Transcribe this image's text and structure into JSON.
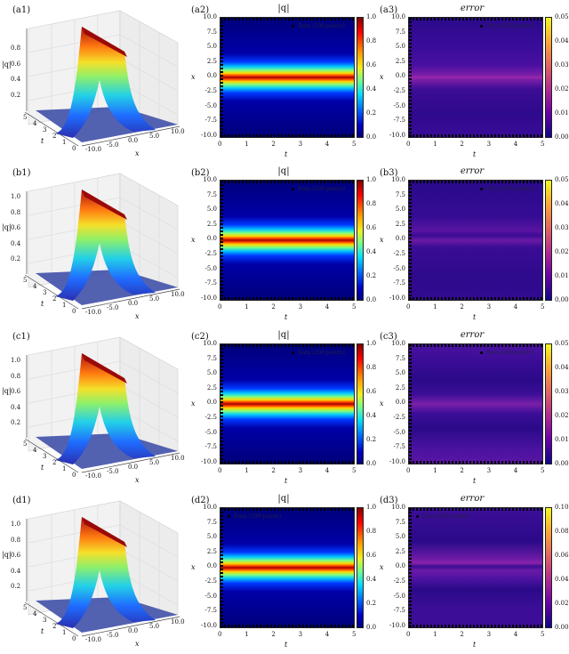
{
  "chart_data": [
    {
      "panel": "a1",
      "type": "surface3d",
      "zlabel": "|q|",
      "xlabel": "x",
      "ylabel": "t",
      "xticks": [
        "-10.0",
        "-5.0",
        "0.0",
        "5.0",
        "10.0"
      ],
      "yticks": [
        "0",
        "1",
        "2",
        "3",
        "4",
        "5"
      ],
      "zticks": [
        "0.2",
        "0.4",
        "0.6",
        "0.8"
      ],
      "peak": 1.0,
      "profile": "sech soliton centered at x=0, constant in t"
    },
    {
      "panel": "a2",
      "type": "heatmap",
      "title": "|q|",
      "xlabel": "t",
      "ylabel": "x",
      "xticks": [
        "0",
        "1",
        "2",
        "3",
        "4",
        "5"
      ],
      "yticks": [
        "10.0",
        "7.5",
        "5.0",
        "2.5",
        "0.0",
        "-2.5",
        "-5.0",
        "-7.5",
        "-10.0"
      ],
      "colormap": "jet",
      "colorbar": [
        "1.0",
        "0.8",
        "0.6",
        "0.4",
        "0.2",
        "0.0"
      ],
      "legend": "Data (200 points)",
      "band_center_x": 0.0,
      "band_halfwidth": 2.5
    },
    {
      "panel": "a3",
      "type": "heatmap",
      "title": "error",
      "xlabel": "t",
      "ylabel": "x",
      "xticks": [
        "0",
        "1",
        "2",
        "3",
        "4",
        "5"
      ],
      "yticks": [
        "10.0",
        "7.5",
        "5.0",
        "2.5",
        "0.0",
        "-2.5",
        "-5.0",
        "-7.5",
        "-10.0"
      ],
      "colormap": "plasma",
      "colorbar": [
        "0.05",
        "0.04",
        "0.03",
        "0.02",
        "0.01",
        "0.00"
      ],
      "legend": "Data (200 points)",
      "max_error_region": "x≈0, t 2–5"
    },
    {
      "panel": "b1",
      "type": "surface3d",
      "zlabel": "|q|",
      "xlabel": "x",
      "ylabel": "t",
      "xticks": [
        "-10.0",
        "-5.0",
        "0.0",
        "5.0",
        "10.0"
      ],
      "yticks": [
        "0",
        "1",
        "2",
        "3",
        "4",
        "5"
      ],
      "zticks": [
        "0.2",
        "0.4",
        "0.6",
        "0.8",
        "1.0"
      ],
      "peak": 1.0
    },
    {
      "panel": "b2",
      "type": "heatmap",
      "title": "|q|",
      "xlabel": "t",
      "ylabel": "x",
      "xticks": [
        "0",
        "1",
        "2",
        "3",
        "4",
        "5"
      ],
      "yticks": [
        "10.0",
        "7.5",
        "5.0",
        "2.5",
        "0.0",
        "-2.5",
        "-5.0",
        "-7.5",
        "-10.0"
      ],
      "colormap": "jet",
      "colorbar": [
        "1.0",
        "0.8",
        "0.6",
        "0.4",
        "0.2",
        "0.0"
      ],
      "legend": "Data (200 points)"
    },
    {
      "panel": "b3",
      "type": "heatmap",
      "title": "error",
      "xlabel": "t",
      "ylabel": "x",
      "xticks": [
        "0",
        "1",
        "2",
        "3",
        "4",
        "5"
      ],
      "yticks": [
        "10.0",
        "7.5",
        "5.0",
        "2.5",
        "0.0",
        "-2.5",
        "-5.0",
        "-7.5",
        "-10.0"
      ],
      "colormap": "plasma",
      "colorbar": [
        "0.05",
        "0.04",
        "0.03",
        "0.02",
        "0.01",
        "0.00"
      ],
      "legend": "Data (200 points)"
    },
    {
      "panel": "c1",
      "type": "surface3d",
      "zlabel": "|q|",
      "xlabel": "x",
      "ylabel": "t",
      "xticks": [
        "-10.0",
        "-5.0",
        "0.0",
        "5.0",
        "10.0"
      ],
      "yticks": [
        "0",
        "1",
        "2",
        "3",
        "4",
        "5"
      ],
      "zticks": [
        "0.2",
        "0.4",
        "0.6",
        "0.8",
        "1.0"
      ],
      "peak": 1.0
    },
    {
      "panel": "c2",
      "type": "heatmap",
      "title": "|q|",
      "xlabel": "t",
      "ylabel": "x",
      "xticks": [
        "0",
        "1",
        "2",
        "3",
        "4",
        "5"
      ],
      "yticks": [
        "10.0",
        "7.5",
        "5.0",
        "2.5",
        "0.0",
        "-2.5",
        "-5.0",
        "-7.5",
        "-10.0"
      ],
      "colormap": "jet",
      "colorbar": [
        "1.0",
        "0.8",
        "0.6",
        "0.4",
        "0.2",
        "0.0"
      ],
      "legend": "Data (200 points)"
    },
    {
      "panel": "c3",
      "type": "heatmap",
      "title": "error",
      "xlabel": "t",
      "ylabel": "x",
      "xticks": [
        "0",
        "1",
        "2",
        "3",
        "4",
        "5"
      ],
      "yticks": [
        "10.0",
        "7.5",
        "5.0",
        "2.5",
        "0.0",
        "-2.5",
        "-5.0",
        "-7.5",
        "-10.0"
      ],
      "colormap": "plasma",
      "colorbar": [
        "0.05",
        "0.04",
        "0.03",
        "0.02",
        "0.01",
        "0.00"
      ],
      "legend": "Data (200 points)"
    },
    {
      "panel": "d1",
      "type": "surface3d",
      "zlabel": "|q|",
      "xlabel": "x",
      "ylabel": "t",
      "xticks": [
        "-10.0",
        "-5.0",
        "0.0",
        "5.0",
        "10.0"
      ],
      "yticks": [
        "0",
        "1",
        "2",
        "3",
        "4",
        "5"
      ],
      "zticks": [
        "0.2",
        "0.4",
        "0.6",
        "0.8",
        "1.0"
      ],
      "peak": 1.0
    },
    {
      "panel": "d2",
      "type": "heatmap",
      "title": "|q|",
      "xlabel": "t",
      "ylabel": "x",
      "xticks": [
        "0",
        "1",
        "2",
        "3",
        "4",
        "5"
      ],
      "yticks": [
        "10.0",
        "7.5",
        "5.0",
        "2.5",
        "0.0",
        "-2.5",
        "-5.0",
        "-7.5",
        "-10.0"
      ],
      "colormap": "jet",
      "colorbar": [
        "1.0",
        "0.8",
        "0.6",
        "0.4",
        "0.2",
        "0.0"
      ],
      "legend": "Data (200 points)"
    },
    {
      "panel": "d3",
      "type": "heatmap",
      "title": "error",
      "xlabel": "t",
      "ylabel": "x",
      "xticks": [
        "0",
        "1",
        "2",
        "3",
        "4",
        "5"
      ],
      "yticks": [
        "10.0",
        "7.5",
        "5.0",
        "2.5",
        "0.0",
        "-2.5",
        "-5.0",
        "-7.5",
        "-10.0"
      ],
      "colormap": "plasma",
      "colorbar": [
        "0.10",
        "0.08",
        "0.06",
        "0.04",
        "0.02",
        "0.00"
      ],
      "legend": "Data (200 points)"
    }
  ],
  "rows": [
    {
      "s": "(a1)",
      "h": "(a2)",
      "e": "(a3)",
      "zt": [
        "0.8",
        "0.6",
        "0.4",
        "0.2"
      ],
      "cb": [
        "0.05",
        "0.04",
        "0.03",
        "0.02",
        "0.01",
        "0.00"
      ]
    },
    {
      "s": "(b1)",
      "h": "(b2)",
      "e": "(b3)",
      "zt": [
        "1.0",
        "0.8",
        "0.6",
        "0.4",
        "0.2"
      ],
      "cb": [
        "0.05",
        "0.04",
        "0.03",
        "0.02",
        "0.01",
        "0.00"
      ]
    },
    {
      "s": "(c1)",
      "h": "(c2)",
      "e": "(c3)",
      "zt": [
        "1.0",
        "0.8",
        "0.6",
        "0.4",
        "0.2"
      ],
      "cb": [
        "0.05",
        "0.04",
        "0.03",
        "0.02",
        "0.01",
        "0.00"
      ]
    },
    {
      "s": "(d1)",
      "h": "(d2)",
      "e": "(d3)",
      "zt": [
        "1.0",
        "0.8",
        "0.6",
        "0.4",
        "0.2"
      ],
      "cb": [
        "0.10",
        "0.08",
        "0.06",
        "0.04",
        "0.02",
        "0.00"
      ]
    }
  ],
  "common": {
    "title_q": "|q|",
    "title_err": "error",
    "zlabel": "|q|",
    "xlabel": "x",
    "tlabel": "t",
    "legend": "Data (200 points)",
    "yticks": [
      "10.0",
      "7.5",
      "5.0",
      "2.5",
      "0.0",
      "-2.5",
      "-5.0",
      "-7.5",
      "-10.0"
    ],
    "tticks": [
      "0",
      "1",
      "2",
      "3",
      "4",
      "5"
    ],
    "xticks3d": [
      "-10.0",
      "-5.0",
      "0.0",
      "5.0",
      "10.0"
    ],
    "tticks3d": [
      "5",
      "4",
      "3",
      "2",
      "1",
      "0"
    ],
    "cb_q": [
      "1.0",
      "0.8",
      "0.6",
      "0.4",
      "0.2",
      "0.0"
    ]
  }
}
